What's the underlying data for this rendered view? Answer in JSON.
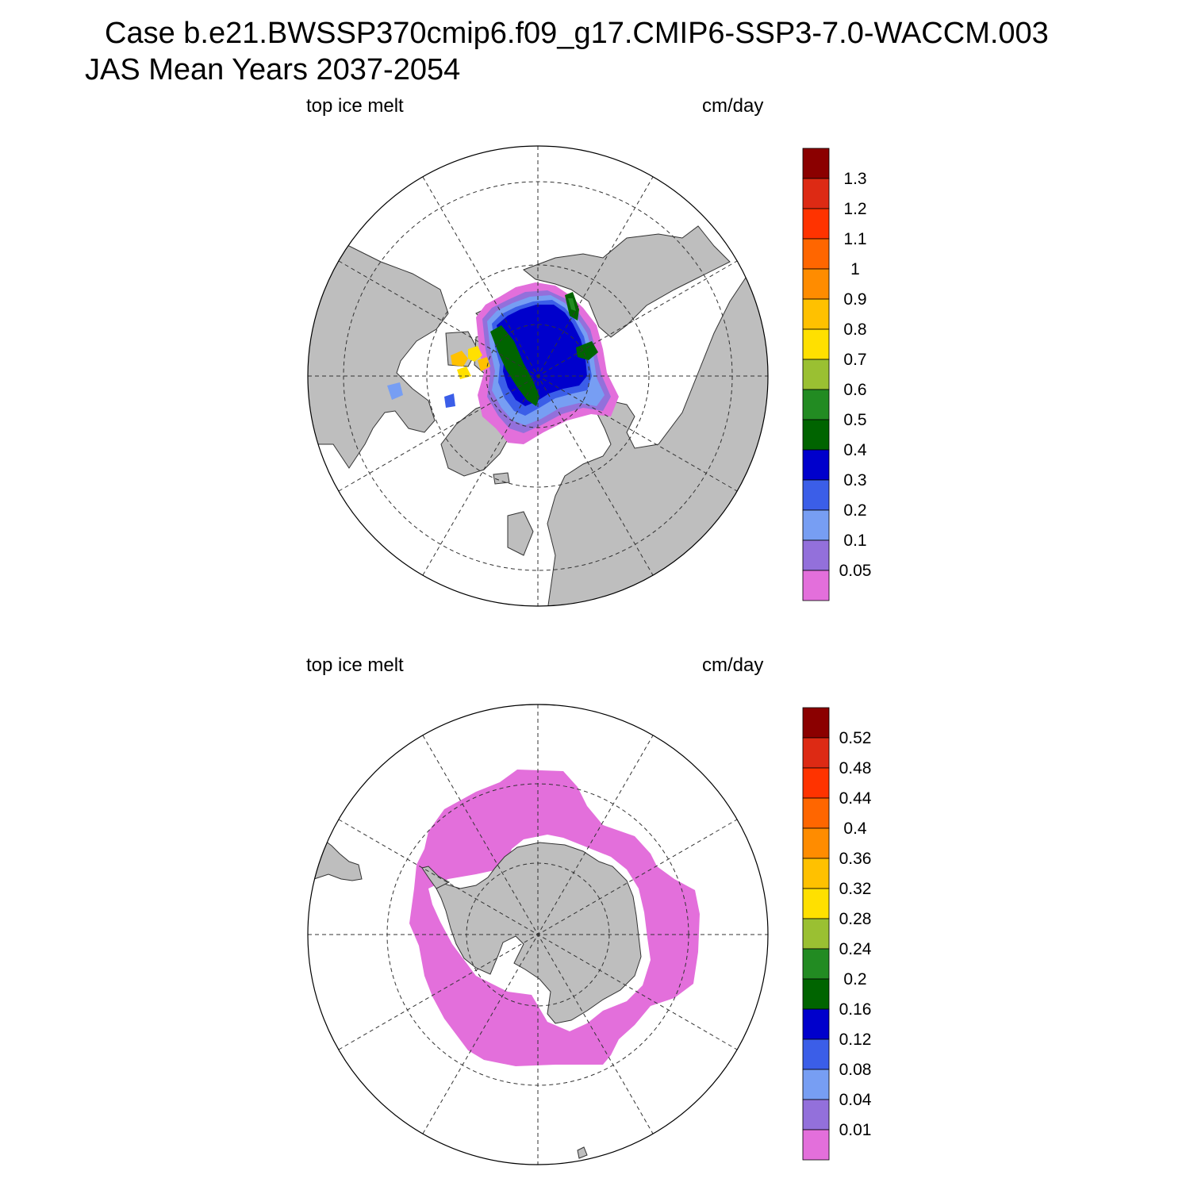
{
  "header": {
    "case_line": "Case b.e21.BWSSP370cmip6.f09_g17.CMIP6-SSP3-7.0-WACCM.003",
    "period_line": "JAS Mean   Years 2037-2054"
  },
  "colors": {
    "land": "#bebebe",
    "ocean": "#ffffff",
    "palette": [
      "#e36fdb",
      "#9370db",
      "#779ef3",
      "#3b5ee8",
      "#0000cc",
      "#006400",
      "#228b22",
      "#9ac032",
      "#ffe000",
      "#ffc100",
      "#ff8c00",
      "#ff6600",
      "#ff3300",
      "#dd2a14",
      "#8b0000"
    ]
  },
  "panels": [
    {
      "id": "north",
      "hemisphere": "Arctic",
      "variable": "top ice melt",
      "units": "cm/day",
      "colorbar_labels": [
        "1.3",
        "1.2",
        "1.1",
        "1",
        "0.9",
        "0.8",
        "0.7",
        "0.6",
        "0.5",
        "0.4",
        "0.3",
        "0.2",
        "0.1",
        "0.05"
      ],
      "dominant_value_band": "0.3-0.4"
    },
    {
      "id": "south",
      "hemisphere": "Antarctic",
      "variable": "top ice melt",
      "units": "cm/day",
      "colorbar_labels": [
        "0.52",
        "0.48",
        "0.44",
        "0.4",
        "0.36",
        "0.32",
        "0.28",
        "0.24",
        "0.2",
        "0.16",
        "0.12",
        "0.08",
        "0.04",
        "0.01"
      ],
      "dominant_value_band": "<0.01"
    }
  ]
}
